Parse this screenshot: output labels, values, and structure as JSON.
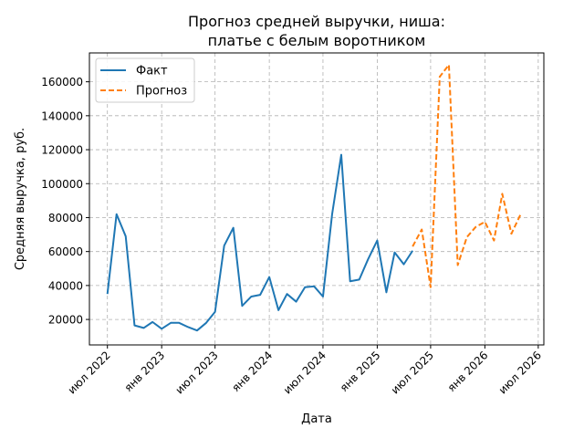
{
  "chart_data": {
    "type": "line",
    "title": [
      "Прогноз средней выручки, ниша:",
      "платье с белым воротником"
    ],
    "xlabel": "Дата",
    "ylabel": "Средняя выручка, руб.",
    "xlim": [
      "2022-05-01",
      "2026-07-20"
    ],
    "ylim": [
      5000,
      177000
    ],
    "x_ticks": [
      {
        "date": "2022-07-01",
        "label": "июл 2022"
      },
      {
        "date": "2023-01-01",
        "label": "янв 2023"
      },
      {
        "date": "2023-07-01",
        "label": "июл 2023"
      },
      {
        "date": "2024-01-01",
        "label": "янв 2024"
      },
      {
        "date": "2024-07-01",
        "label": "июл 2024"
      },
      {
        "date": "2025-01-01",
        "label": "янв 2025"
      },
      {
        "date": "2025-07-01",
        "label": "июл 2025"
      },
      {
        "date": "2026-01-01",
        "label": "янв 2026"
      },
      {
        "date": "2026-07-01",
        "label": "июл 2026"
      }
    ],
    "y_ticks": [
      {
        "value": 20000,
        "label": "20000"
      },
      {
        "value": 40000,
        "label": "40000"
      },
      {
        "value": 60000,
        "label": "60000"
      },
      {
        "value": 80000,
        "label": "80000"
      },
      {
        "value": 100000,
        "label": "100000"
      },
      {
        "value": 120000,
        "label": "120000"
      },
      {
        "value": 140000,
        "label": "140000"
      },
      {
        "value": 160000,
        "label": "160000"
      }
    ],
    "grid": true,
    "legend_position": "top-left",
    "series": [
      {
        "name": "Факт",
        "color": "#1f77b4",
        "style": "solid",
        "x": [
          "2022-07-01",
          "2022-08-01",
          "2022-09-01",
          "2022-10-01",
          "2022-11-01",
          "2022-12-01",
          "2023-01-01",
          "2023-02-01",
          "2023-03-01",
          "2023-04-01",
          "2023-05-01",
          "2023-06-01",
          "2023-07-01",
          "2023-08-01",
          "2023-09-01",
          "2023-10-01",
          "2023-11-01",
          "2023-12-01",
          "2024-01-01",
          "2024-02-01",
          "2024-03-01",
          "2024-04-01",
          "2024-05-01",
          "2024-06-01",
          "2024-07-01",
          "2024-08-01",
          "2024-09-01",
          "2024-10-01",
          "2024-11-01",
          "2024-12-01",
          "2025-01-01",
          "2025-02-01",
          "2025-03-01",
          "2025-04-01",
          "2025-05-01"
        ],
        "y": [
          35000,
          82000,
          69000,
          16500,
          15000,
          18500,
          14500,
          18000,
          18000,
          15500,
          13500,
          18000,
          24500,
          63500,
          74000,
          28000,
          33500,
          34500,
          45000,
          25500,
          35000,
          30500,
          39000,
          39500,
          33500,
          82000,
          117000,
          42500,
          43500,
          55500,
          66500,
          36000,
          59500,
          52500,
          60500
        ]
      },
      {
        "name": "Прогноз",
        "color": "#ff7f0e",
        "style": "dashed",
        "x": [
          "2025-05-01",
          "2025-06-01",
          "2025-07-01",
          "2025-08-01",
          "2025-09-01",
          "2025-10-01",
          "2025-11-01",
          "2025-12-01",
          "2026-01-01",
          "2026-02-01",
          "2026-03-01",
          "2026-04-01",
          "2026-05-01"
        ],
        "y": [
          63000,
          73000,
          39000,
          163000,
          170000,
          52000,
          68500,
          74500,
          77500,
          66500,
          94000,
          70500,
          81500
        ]
      }
    ]
  }
}
